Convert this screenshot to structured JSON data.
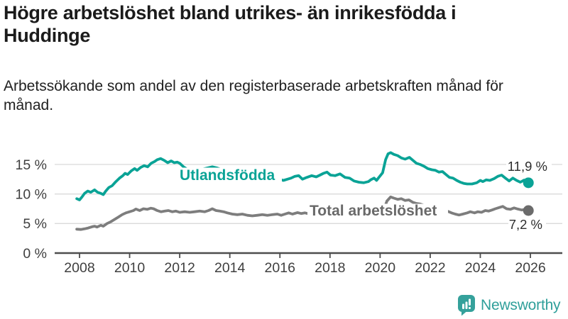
{
  "chart_data": {
    "type": "line",
    "title": "Högre arbetslöshet bland utrikes- än inrikesfödda i Huddinge",
    "subtitle": "Arbetssökande som andel av den registerbaserade arbetskraften månad för månad.",
    "grid": true,
    "legend": "inline-labels",
    "x_axis": {
      "tick_labels": [
        "2008",
        "2010",
        "2012",
        "2014",
        "2016",
        "2018",
        "2020",
        "2022",
        "2024",
        "2026"
      ],
      "tick_values": [
        2008,
        2010,
        2012,
        2014,
        2016,
        2018,
        2020,
        2022,
        2024,
        2026
      ],
      "range": [
        2007.5,
        2027.3
      ]
    },
    "y_axis": {
      "tick_labels": [
        "0 %",
        "5 %",
        "10 %",
        "15 %"
      ],
      "tick_values": [
        0,
        5,
        10,
        15
      ],
      "range": [
        0,
        18
      ],
      "unit": "%"
    },
    "series": [
      {
        "name": "Utlandsfödda",
        "color": "#0aa396",
        "label_color": "#0aa396",
        "end_label": "11,9 %",
        "end_value": 11.9,
        "points": [
          [
            2007.89,
            9.2
          ],
          [
            2008.0,
            9.0
          ],
          [
            2008.1,
            9.5
          ],
          [
            2008.2,
            10.1
          ],
          [
            2008.33,
            10.5
          ],
          [
            2008.45,
            10.3
          ],
          [
            2008.6,
            10.7
          ],
          [
            2008.72,
            10.3
          ],
          [
            2008.85,
            10.1
          ],
          [
            2008.95,
            9.9
          ],
          [
            2009.05,
            10.5
          ],
          [
            2009.17,
            11.1
          ],
          [
            2009.3,
            11.4
          ],
          [
            2009.45,
            12.1
          ],
          [
            2009.6,
            12.7
          ],
          [
            2009.73,
            13.1
          ],
          [
            2009.82,
            13.5
          ],
          [
            2009.92,
            13.3
          ],
          [
            2010.06,
            13.9
          ],
          [
            2010.2,
            14.3
          ],
          [
            2010.3,
            14.0
          ],
          [
            2010.44,
            14.5
          ],
          [
            2010.58,
            14.8
          ],
          [
            2010.72,
            14.6
          ],
          [
            2010.86,
            15.2
          ],
          [
            2011.0,
            15.5
          ],
          [
            2011.1,
            15.8
          ],
          [
            2011.24,
            16.0
          ],
          [
            2011.38,
            15.7
          ],
          [
            2011.52,
            15.3
          ],
          [
            2011.66,
            15.6
          ],
          [
            2011.78,
            15.3
          ],
          [
            2011.9,
            15.4
          ],
          [
            2012.0,
            15.2
          ],
          [
            2012.15,
            14.6
          ],
          [
            2012.3,
            14.2
          ],
          [
            2012.6,
            14.1
          ],
          [
            2012.9,
            14.2
          ],
          [
            2013.1,
            14.4
          ],
          [
            2013.3,
            14.6
          ],
          [
            2013.5,
            14.4
          ],
          [
            2013.7,
            14.1
          ],
          [
            2014.0,
            13.9
          ],
          [
            2014.3,
            13.7
          ],
          [
            2014.6,
            13.5
          ],
          [
            2014.9,
            13.2
          ],
          [
            2015.2,
            13.0
          ],
          [
            2015.5,
            12.9
          ],
          [
            2015.8,
            12.8
          ],
          [
            2015.95,
            12.5
          ],
          [
            2016.14,
            12.3
          ],
          [
            2016.3,
            12.5
          ],
          [
            2016.45,
            12.7
          ],
          [
            2016.6,
            13.0
          ],
          [
            2016.75,
            13.1
          ],
          [
            2016.9,
            12.5
          ],
          [
            2017.07,
            12.8
          ],
          [
            2017.27,
            13.1
          ],
          [
            2017.45,
            12.9
          ],
          [
            2017.6,
            13.2
          ],
          [
            2017.74,
            13.5
          ],
          [
            2017.88,
            13.7
          ],
          [
            2018.02,
            13.2
          ],
          [
            2018.2,
            13.1
          ],
          [
            2018.4,
            13.4
          ],
          [
            2018.6,
            12.8
          ],
          [
            2018.78,
            12.7
          ],
          [
            2018.96,
            12.2
          ],
          [
            2019.15,
            12.0
          ],
          [
            2019.34,
            11.9
          ],
          [
            2019.53,
            12.1
          ],
          [
            2019.62,
            12.4
          ],
          [
            2019.76,
            12.7
          ],
          [
            2019.86,
            12.3
          ],
          [
            2019.95,
            12.8
          ],
          [
            2020.1,
            13.6
          ],
          [
            2020.22,
            15.8
          ],
          [
            2020.32,
            16.8
          ],
          [
            2020.42,
            17.0
          ],
          [
            2020.55,
            16.7
          ],
          [
            2020.7,
            16.5
          ],
          [
            2020.85,
            16.1
          ],
          [
            2021.0,
            15.9
          ],
          [
            2021.17,
            16.2
          ],
          [
            2021.31,
            15.7
          ],
          [
            2021.45,
            15.2
          ],
          [
            2021.6,
            15.0
          ],
          [
            2021.75,
            14.7
          ],
          [
            2021.9,
            14.3
          ],
          [
            2022.07,
            14.1
          ],
          [
            2022.21,
            14.0
          ],
          [
            2022.35,
            13.7
          ],
          [
            2022.49,
            13.8
          ],
          [
            2022.63,
            13.3
          ],
          [
            2022.77,
            12.8
          ],
          [
            2022.91,
            12.7
          ],
          [
            2023.06,
            12.3
          ],
          [
            2023.2,
            12.0
          ],
          [
            2023.34,
            11.8
          ],
          [
            2023.48,
            11.7
          ],
          [
            2023.67,
            11.7
          ],
          [
            2023.86,
            11.9
          ],
          [
            2024.0,
            12.3
          ],
          [
            2024.1,
            12.1
          ],
          [
            2024.24,
            12.4
          ],
          [
            2024.38,
            12.3
          ],
          [
            2024.55,
            12.6
          ],
          [
            2024.7,
            13.0
          ],
          [
            2024.85,
            13.2
          ],
          [
            2025.0,
            12.7
          ],
          [
            2025.15,
            12.2
          ],
          [
            2025.3,
            12.7
          ],
          [
            2025.45,
            12.3
          ],
          [
            2025.6,
            12.0
          ],
          [
            2025.75,
            12.35
          ],
          [
            2025.92,
            11.9
          ]
        ]
      },
      {
        "name": "Total arbetslöshet",
        "color": "#7d7d7d",
        "label_color": "#696969",
        "end_label": "7,2 %",
        "end_value": 7.2,
        "points": [
          [
            2007.89,
            4.05
          ],
          [
            2008.05,
            4.0
          ],
          [
            2008.2,
            4.1
          ],
          [
            2008.35,
            4.25
          ],
          [
            2008.5,
            4.45
          ],
          [
            2008.6,
            4.55
          ],
          [
            2008.7,
            4.4
          ],
          [
            2008.85,
            4.7
          ],
          [
            2008.95,
            4.55
          ],
          [
            2009.1,
            5.0
          ],
          [
            2009.25,
            5.3
          ],
          [
            2009.4,
            5.7
          ],
          [
            2009.55,
            6.1
          ],
          [
            2009.7,
            6.5
          ],
          [
            2009.85,
            6.8
          ],
          [
            2010.0,
            7.0
          ],
          [
            2010.15,
            7.2
          ],
          [
            2010.25,
            7.45
          ],
          [
            2010.4,
            7.2
          ],
          [
            2010.55,
            7.5
          ],
          [
            2010.7,
            7.4
          ],
          [
            2010.85,
            7.6
          ],
          [
            2010.96,
            7.5
          ],
          [
            2011.1,
            7.2
          ],
          [
            2011.25,
            7.0
          ],
          [
            2011.4,
            7.1
          ],
          [
            2011.55,
            7.2
          ],
          [
            2011.7,
            7.0
          ],
          [
            2011.85,
            7.1
          ],
          [
            2012.0,
            6.9
          ],
          [
            2012.2,
            7.0
          ],
          [
            2012.4,
            6.9
          ],
          [
            2012.6,
            7.0
          ],
          [
            2012.8,
            7.1
          ],
          [
            2013.0,
            7.0
          ],
          [
            2013.15,
            7.2
          ],
          [
            2013.3,
            7.5
          ],
          [
            2013.45,
            7.2
          ],
          [
            2013.6,
            7.1
          ],
          [
            2013.75,
            7.0
          ],
          [
            2013.9,
            6.8
          ],
          [
            2014.1,
            6.6
          ],
          [
            2014.3,
            6.5
          ],
          [
            2014.5,
            6.6
          ],
          [
            2014.7,
            6.4
          ],
          [
            2014.9,
            6.3
          ],
          [
            2015.1,
            6.4
          ],
          [
            2015.3,
            6.5
          ],
          [
            2015.5,
            6.4
          ],
          [
            2015.7,
            6.5
          ],
          [
            2015.9,
            6.6
          ],
          [
            2016.05,
            6.4
          ],
          [
            2016.2,
            6.6
          ],
          [
            2016.35,
            6.8
          ],
          [
            2016.5,
            6.6
          ],
          [
            2016.7,
            6.85
          ],
          [
            2016.85,
            6.7
          ],
          [
            2017.0,
            6.8
          ],
          [
            2017.2,
            6.6
          ],
          [
            2017.4,
            6.5
          ],
          [
            2017.6,
            6.4
          ],
          [
            2017.8,
            6.5
          ],
          [
            2018.0,
            6.4
          ],
          [
            2018.2,
            6.3
          ],
          [
            2018.4,
            6.4
          ],
          [
            2018.6,
            6.3
          ],
          [
            2018.8,
            6.2
          ],
          [
            2019.0,
            6.2
          ],
          [
            2019.2,
            6.1
          ],
          [
            2019.4,
            6.2
          ],
          [
            2019.6,
            6.3
          ],
          [
            2019.8,
            6.4
          ],
          [
            2020.0,
            6.5
          ],
          [
            2020.13,
            7.1
          ],
          [
            2020.27,
            8.8
          ],
          [
            2020.42,
            9.5
          ],
          [
            2020.55,
            9.3
          ],
          [
            2020.7,
            9.1
          ],
          [
            2020.85,
            9.2
          ],
          [
            2021.0,
            8.9
          ],
          [
            2021.15,
            9.0
          ],
          [
            2021.3,
            8.6
          ],
          [
            2021.45,
            8.4
          ],
          [
            2021.6,
            8.3
          ],
          [
            2021.75,
            8.1
          ],
          [
            2021.9,
            7.9
          ],
          [
            2022.1,
            7.7
          ],
          [
            2022.3,
            7.5
          ],
          [
            2022.5,
            7.3
          ],
          [
            2022.68,
            7.1
          ],
          [
            2022.85,
            6.8
          ],
          [
            2023.0,
            6.6
          ],
          [
            2023.15,
            6.45
          ],
          [
            2023.3,
            6.6
          ],
          [
            2023.48,
            6.8
          ],
          [
            2023.6,
            7.0
          ],
          [
            2023.77,
            6.8
          ],
          [
            2023.9,
            7.0
          ],
          [
            2024.05,
            6.9
          ],
          [
            2024.2,
            7.2
          ],
          [
            2024.33,
            7.1
          ],
          [
            2024.47,
            7.3
          ],
          [
            2024.6,
            7.5
          ],
          [
            2024.75,
            7.7
          ],
          [
            2024.9,
            7.9
          ],
          [
            2025.05,
            7.5
          ],
          [
            2025.2,
            7.4
          ],
          [
            2025.35,
            7.65
          ],
          [
            2025.5,
            7.45
          ],
          [
            2025.65,
            7.3
          ],
          [
            2025.8,
            7.4
          ],
          [
            2025.92,
            7.2
          ]
        ]
      }
    ]
  },
  "branding": {
    "logo_text": "Newsworthy",
    "logo_icon": "bar-chart-speech-bubble",
    "brand_color": "#35a19b"
  },
  "style": {
    "grid_color": "#dadada",
    "axis_color": "#4d4d4d",
    "tick_label_color": "#3f3f3f",
    "end_label_color": "#2d2d2d",
    "background": "#ffffff"
  }
}
